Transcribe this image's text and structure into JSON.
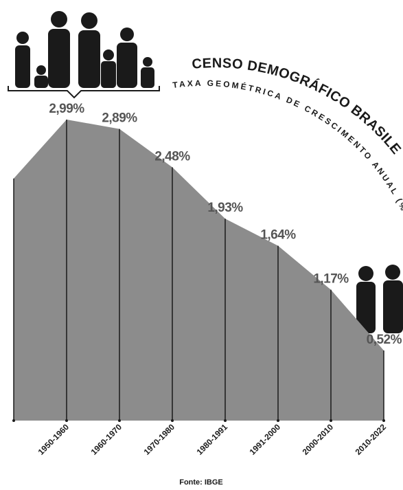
{
  "chart_data": {
    "type": "area",
    "title": "CENSO DEMOGRÁFICO BRASILEIRO",
    "subtitle": "TAXA GEOMÉTRICA DE CRESCIMENTO ANUAL (%)",
    "source": "Fonte: IBGE",
    "categories": [
      null,
      "1950-1960",
      "1960-1970",
      "1970-1980",
      "1980-1991",
      "1991-2000",
      "2000-2010",
      "2010-2022"
    ],
    "values": [
      2.36,
      2.99,
      2.89,
      2.48,
      1.93,
      1.64,
      1.17,
      0.52
    ],
    "value_labels": [
      null,
      "2,99%",
      "2,89%",
      "2,48%",
      "1,93%",
      "1,64%",
      "1,17%",
      "0,52%"
    ],
    "color": "#8c8c8c"
  }
}
